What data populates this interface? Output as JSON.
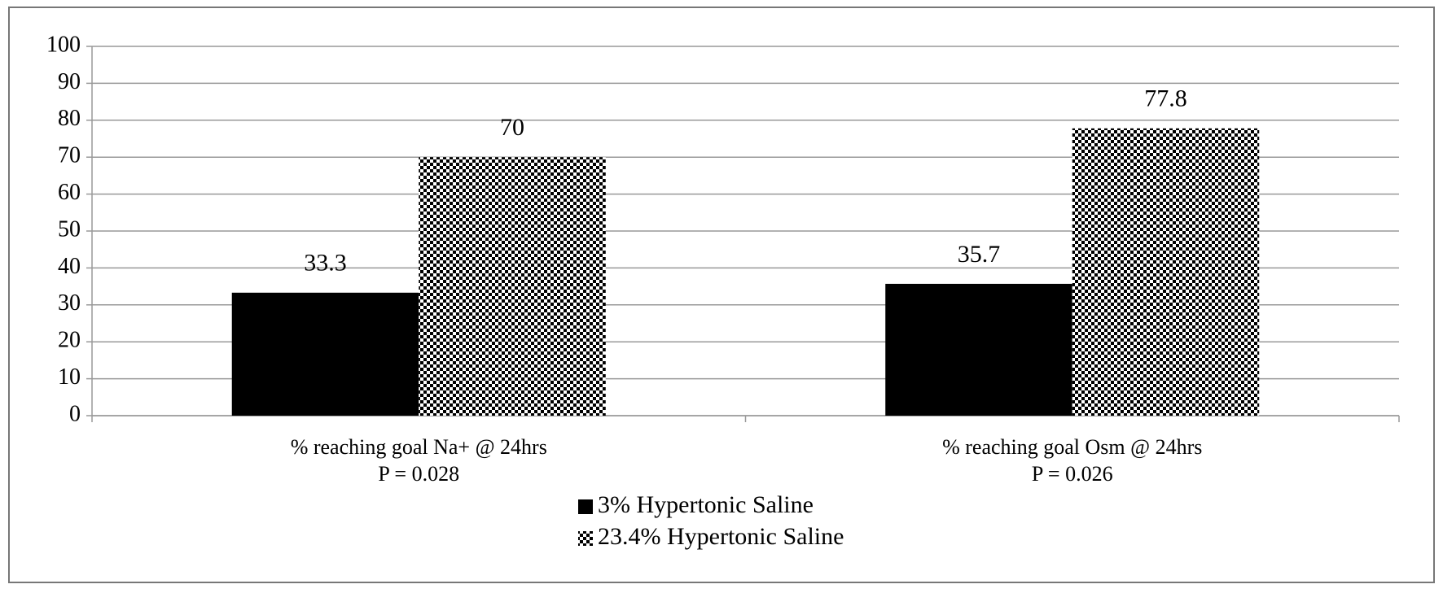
{
  "chart_data": {
    "type": "bar",
    "categories": [
      [
        "% reaching goal Na+ @ 24hrs",
        "P = 0.028"
      ],
      [
        "% reaching goal Osm @ 24hrs",
        "P = 0.026"
      ]
    ],
    "series": [
      {
        "name": "3% Hypertonic Saline",
        "color": "#000000",
        "values": [
          33.3,
          35.7
        ]
      },
      {
        "name": "23.4% Hypertonic Saline",
        "color": "#000000",
        "pattern": "checker",
        "values": [
          70,
          77.8
        ]
      }
    ],
    "ylim": [
      0,
      100
    ],
    "yticks": [
      0,
      10,
      20,
      30,
      40,
      50,
      60,
      70,
      80,
      90,
      100
    ],
    "grid": true,
    "legend": "bottom"
  }
}
